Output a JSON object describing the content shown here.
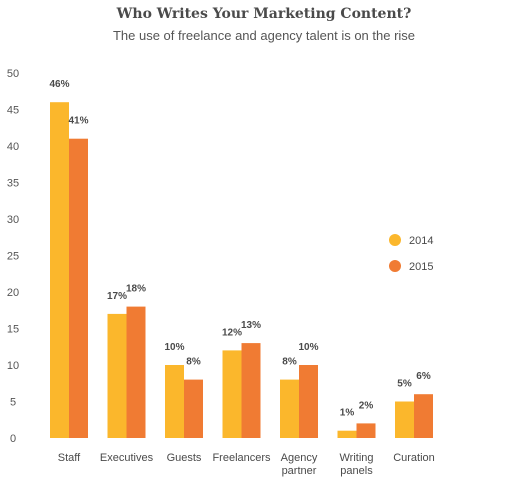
{
  "chart_data": {
    "type": "bar",
    "title": "Who Writes Your Marketing Content?",
    "subtitle": "The use of freelance and agency talent is on the rise",
    "xlabel": "",
    "ylabel": "",
    "ylim": [
      0,
      50
    ],
    "yticks": [
      "0",
      "5",
      "10",
      "15",
      "20",
      "25",
      "30",
      "35",
      "40",
      "45",
      "50"
    ],
    "categories": [
      [
        "Staff"
      ],
      [
        "Executives"
      ],
      [
        "Guests"
      ],
      [
        "Freelancers"
      ],
      [
        "Agency",
        "partner"
      ],
      [
        "Writing",
        "panels"
      ],
      [
        "Curation"
      ]
    ],
    "series": [
      {
        "name": "2014",
        "color": "#fbb72c",
        "values": [
          46,
          17,
          10,
          12,
          8,
          1,
          5
        ],
        "labels": [
          "46%",
          "17%",
          "10%",
          "12%",
          "8%",
          "1%",
          "5%"
        ]
      },
      {
        "name": "2015",
        "color": "#f07b33",
        "values": [
          41,
          18,
          8,
          13,
          10,
          2,
          6
        ],
        "labels": [
          "41%",
          "18%",
          "8%",
          "13%",
          "10%",
          "2%",
          "6%"
        ]
      }
    ],
    "grid": false,
    "legend": "right"
  }
}
